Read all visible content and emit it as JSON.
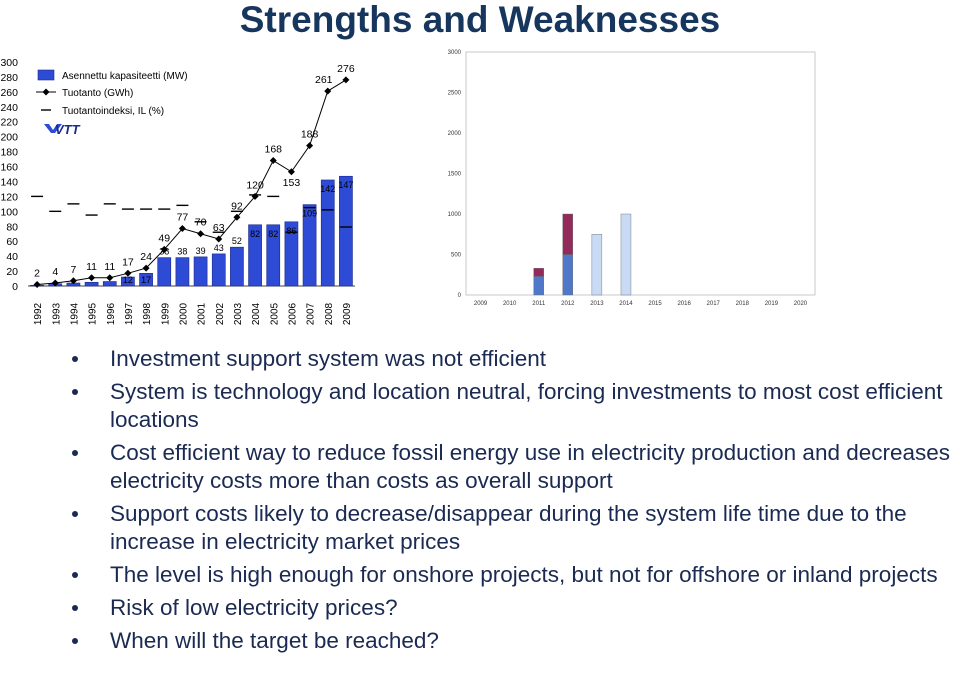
{
  "title": "Strengths and Weaknesses",
  "chart_data": [
    {
      "type": "bar",
      "categories": [
        "1992",
        "1993",
        "1994",
        "1995",
        "1996",
        "1997",
        "1998",
        "1999",
        "2000",
        "2001",
        "2002",
        "2003",
        "2004",
        "2005",
        "2006",
        "2007",
        "2008",
        "2009"
      ],
      "series": [
        {
          "name": "Asennettu kapasiteetti (MW)",
          "type": "bar",
          "values": [
            1,
            3,
            4,
            5,
            6,
            12,
            17,
            38,
            38,
            39,
            43,
            52,
            82,
            82,
            86,
            109,
            142,
            147
          ],
          "labels": [
            "",
            "",
            "",
            "",
            "",
            "12",
            "17",
            "38",
            "38",
            "39",
            "43",
            "52",
            "82",
            "82",
            "86",
            "109",
            "142",
            "147"
          ]
        },
        {
          "name": "Tuotanto (GWh)",
          "type": "line",
          "values": [
            2,
            4,
            7,
            11,
            11,
            17,
            24,
            49,
            77,
            70,
            63,
            92,
            120,
            168,
            153,
            188,
            261,
            276
          ],
          "labels": [
            "2",
            "4",
            "7",
            "11",
            "11",
            "17",
            "24",
            "49",
            "77",
            "70",
            "63",
            "92",
            "120",
            "168",
            "153",
            "188",
            "261",
            "276"
          ]
        },
        {
          "name": "Tuotantoindeksi, IL (%)",
          "type": "marker",
          "values": [
            120,
            100,
            110,
            95,
            110,
            103,
            103,
            103,
            108,
            86,
            72,
            100,
            122,
            120,
            72,
            105,
            102,
            79
          ]
        }
      ],
      "yticks": [
        "0",
        "20",
        "40",
        "60",
        "80",
        "100",
        "120",
        "140",
        "160",
        "180",
        "200",
        "220",
        "240",
        "260",
        "280",
        "300"
      ],
      "ylim": [
        0,
        300
      ],
      "legend": "top-left",
      "logo_text": "VTT",
      "colors": {
        "bar": "#2e4bd6",
        "bar_edge": "#1a2a8a",
        "line": "#000000"
      }
    },
    {
      "type": "bar",
      "categories": [
        "2009",
        "2010",
        "2011",
        "2012",
        "2013",
        "2014",
        "2015",
        "2016",
        "2017",
        "2018",
        "2019",
        "2020"
      ],
      "series": [
        {
          "name": "",
          "values": [
            0,
            0,
            230,
            500,
            0,
            0,
            0,
            0,
            0,
            0,
            0,
            0
          ],
          "color": "#4f78c8"
        },
        {
          "name": "",
          "values": [
            0,
            0,
            100,
            500,
            0,
            0,
            0,
            0,
            0,
            0,
            0,
            0
          ],
          "color": "#922b5a"
        },
        {
          "name": "",
          "values": [
            0,
            0,
            0,
            0,
            750,
            1000,
            0,
            0,
            0,
            0,
            0,
            0
          ],
          "color": "#c9daf5"
        }
      ],
      "yticks": [
        "0",
        "500",
        "1000",
        "1500",
        "2000",
        "2500",
        "3000"
      ],
      "ylim": [
        0,
        3000
      ]
    }
  ],
  "bullets": [
    "Investment support system was not efficient",
    "System is technology and location neutral, forcing investments to most cost efficient locations",
    "Cost efficient way to reduce fossil energy use in electricity production and decreases electricity costs more than costs as overall support",
    "Support costs likely to decrease/disappear during the system life time due to the increase in electricity market prices",
    "The level is high enough for onshore projects, but not for offshore or inland projects",
    "Risk of low electricity prices?",
    "When will the target be reached?"
  ]
}
